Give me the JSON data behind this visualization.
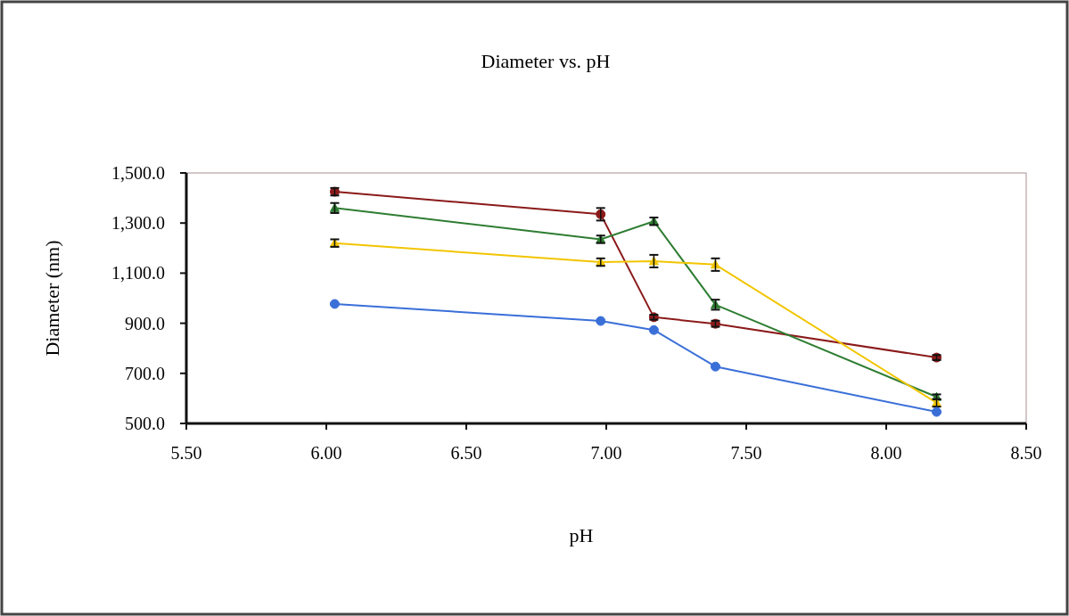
{
  "chart_data": {
    "type": "line",
    "title": "Diameter vs. pH",
    "xlabel": "pH",
    "ylabel": "Diameter (nm)",
    "x": [
      6.03,
      6.98,
      7.17,
      7.39,
      8.18
    ],
    "series": [
      {
        "color": "#8b1a1a",
        "marker": "circle",
        "values": [
          1425,
          1335,
          924,
          898,
          763
        ],
        "errors": [
          15,
          25,
          10,
          12,
          10
        ]
      },
      {
        "color": "#2e7d32",
        "marker": "triangle",
        "values": [
          1360,
          1235,
          1307,
          974,
          606
        ],
        "errors": [
          20,
          15,
          15,
          20,
          10
        ]
      },
      {
        "color": "#f2c500",
        "marker": "triangle",
        "values": [
          1220,
          1144,
          1148,
          1134,
          582
        ],
        "errors": [
          15,
          15,
          25,
          25,
          15
        ]
      },
      {
        "color": "#3a6fd8",
        "marker": "circle",
        "values": [
          977,
          909,
          873,
          727,
          546
        ]
      }
    ],
    "xlim": [
      5.5,
      8.5
    ],
    "xticks": [
      {
        "value": 5.5,
        "label": "5.50"
      },
      {
        "value": 6,
        "label": "6.00"
      },
      {
        "value": 6.5,
        "label": "6.50"
      },
      {
        "value": 7,
        "label": "7.00"
      },
      {
        "value": 7.5,
        "label": "7.50"
      },
      {
        "value": 8,
        "label": "8.00"
      },
      {
        "value": 8.5,
        "label": "8.50"
      }
    ],
    "ylim": [
      500,
      1500
    ],
    "yticks": [
      {
        "value": 500,
        "label": "500.0"
      },
      {
        "value": 700,
        "label": "700.0"
      },
      {
        "value": 900,
        "label": "900.0"
      },
      {
        "value": 1100,
        "label": "1,100.0"
      },
      {
        "value": 1300,
        "label": "1,300.0"
      },
      {
        "value": 1500,
        "label": "1,500.0"
      }
    ],
    "grid": false
  }
}
